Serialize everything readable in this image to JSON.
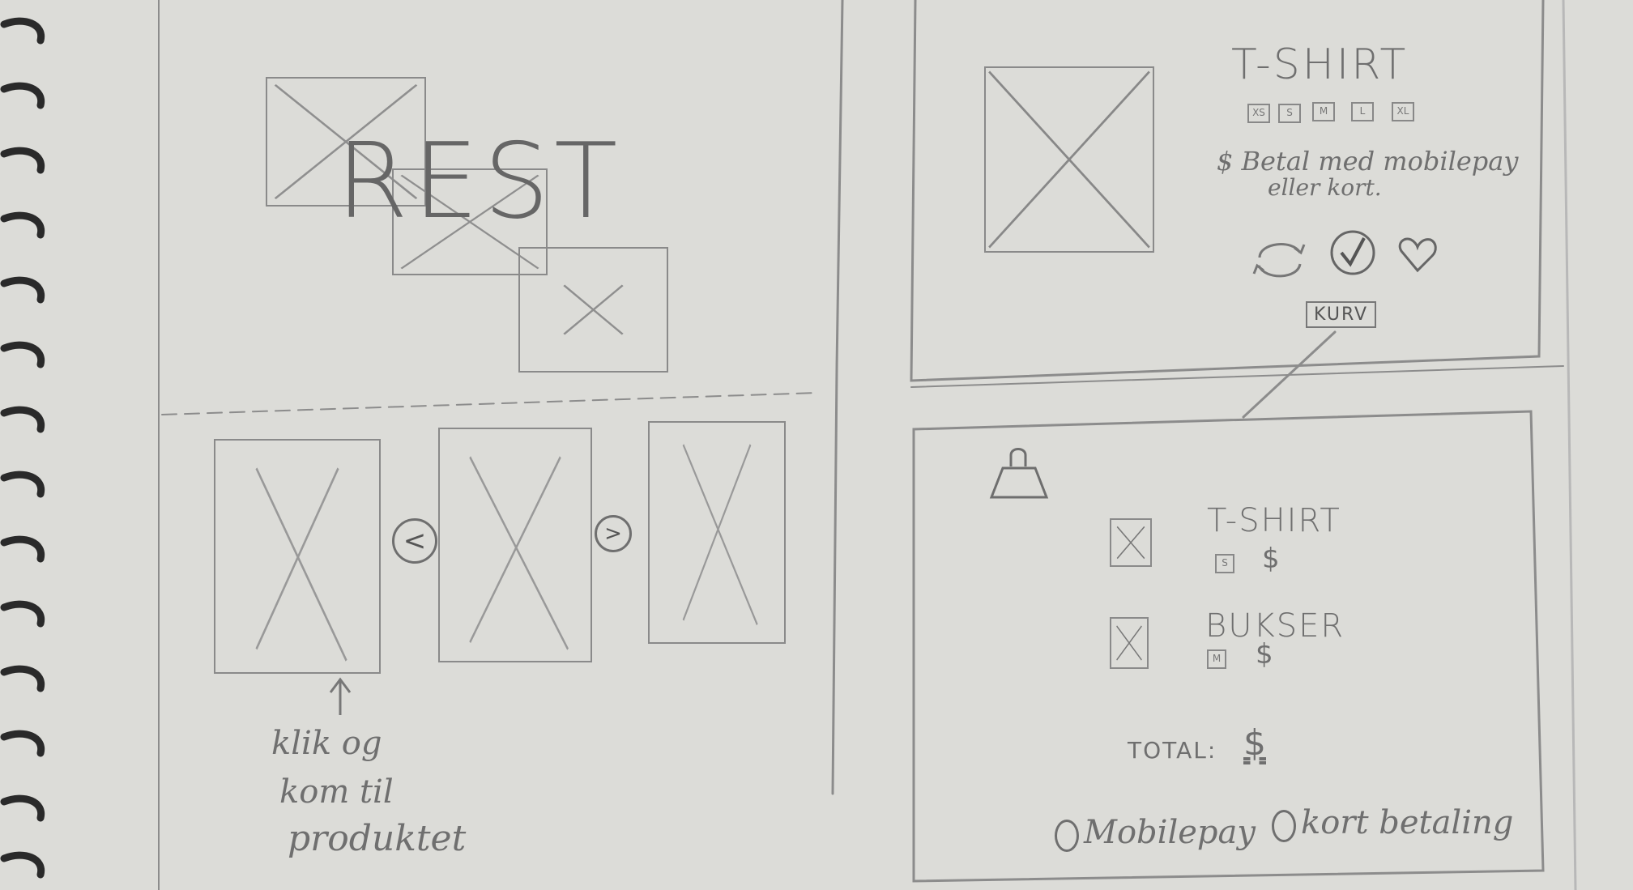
{
  "hero": {
    "logo_text": "REST"
  },
  "carousel": {
    "prev_symbol": "<",
    "next_symbol": ">",
    "annotation_lines": [
      "klik og",
      "kom til",
      "produktet"
    ]
  },
  "product": {
    "title": "T-SHIRT",
    "sizes": [
      "XS",
      "S",
      "M",
      "L",
      "XL"
    ],
    "payment_note_lines": [
      "$ Betal med mobilepay",
      "eller kort."
    ],
    "basket_button": "KURV"
  },
  "basket": {
    "items": [
      {
        "name": "T-SHIRT",
        "size": "S",
        "price": "$"
      },
      {
        "name": "BUKSER",
        "size": "M",
        "price": "$"
      }
    ],
    "total_label": "TOTAL:",
    "total_value": "$",
    "payment_options": [
      "Mobilepay",
      "kort betaling"
    ]
  },
  "colors": {
    "paper": "#dcdcd8",
    "pencil": "#7a7a7a"
  }
}
